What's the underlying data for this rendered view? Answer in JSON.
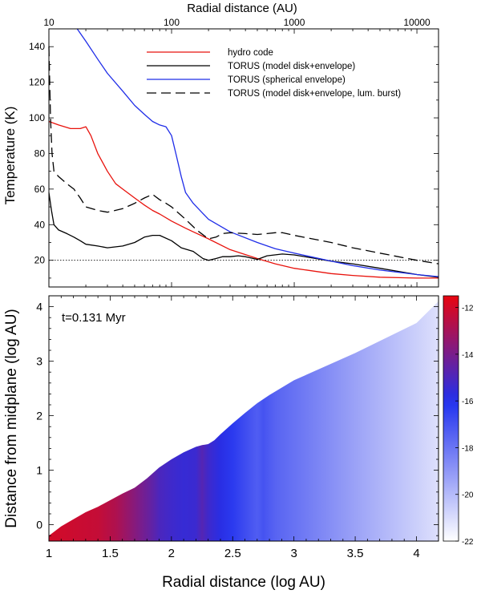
{
  "chart_data": [
    {
      "type": "line",
      "title": "",
      "xlabel": "Radial distance (AU)",
      "ylabel": "Temperature (K)",
      "xscale": "log",
      "xlim": [
        10,
        15000
      ],
      "ylim": [
        5,
        150
      ],
      "x_ticks": [
        10,
        100,
        1000,
        10000
      ],
      "x_tick_labels": [
        "10",
        "100",
        "1000",
        "10000"
      ],
      "y_ticks": [
        20,
        40,
        60,
        80,
        100,
        120,
        140
      ],
      "y_tick_labels": [
        "20",
        "40",
        "60",
        "80",
        "100",
        "120",
        "140"
      ],
      "legend_position": "top-right",
      "reference_line": {
        "y": 20,
        "style": "dotted"
      },
      "series": [
        {
          "name": "hydro code",
          "color": "#e8120c",
          "dash": "solid",
          "x": [
            10,
            12,
            15,
            18,
            20,
            22,
            25,
            30,
            35,
            40,
            50,
            60,
            70,
            80,
            100,
            130,
            150,
            200,
            300,
            500,
            700,
            1000,
            2000,
            3000,
            5000,
            10000,
            15000
          ],
          "y": [
            98,
            96,
            94,
            94,
            95,
            90,
            80,
            70,
            63,
            60,
            55,
            51,
            48,
            46,
            42,
            38,
            36,
            32,
            26,
            21,
            18,
            15.5,
            12.5,
            11.5,
            10.5,
            10,
            10
          ]
        },
        {
          "name": "TORUS (model disk+envelope)",
          "color": "#000000",
          "dash": "solid",
          "x": [
            10,
            10.5,
            11,
            12,
            14,
            16,
            18,
            20,
            25,
            30,
            40,
            50,
            60,
            70,
            80,
            100,
            120,
            150,
            180,
            200,
            230,
            260,
            300,
            350,
            400,
            500,
            600,
            800,
            1000,
            1500,
            2000,
            3000,
            5000,
            10000,
            15000
          ],
          "y": [
            58,
            48,
            40,
            37,
            35,
            33,
            31,
            29,
            28,
            27,
            28,
            30,
            33,
            34,
            34,
            31,
            27,
            25,
            21,
            20,
            21,
            22,
            22,
            22.5,
            22,
            20.5,
            22.5,
            23.5,
            23,
            21,
            19.5,
            18,
            15.5,
            12,
            10.5
          ]
        },
        {
          "name": "TORUS (spherical envelope)",
          "color": "#1f2de8",
          "dash": "solid",
          "x": [
            17,
            20,
            25,
            30,
            40,
            50,
            60,
            70,
            80,
            90,
            100,
            110,
            120,
            130,
            150,
            200,
            300,
            500,
            700,
            1000,
            2000,
            3000,
            5000,
            10000,
            15000
          ],
          "y": [
            150,
            143,
            133,
            125,
            115,
            107,
            102,
            98,
            96,
            95,
            90,
            78,
            67,
            58,
            52,
            43,
            36,
            30,
            26.5,
            24,
            19.5,
            17,
            14.5,
            12,
            10.8
          ]
        },
        {
          "name": "TORUS (model disk+envelope, lum. burst)",
          "color": "#000000",
          "dash": "long-dash",
          "x": [
            10,
            10.3,
            10.6,
            11,
            12,
            14,
            16,
            18,
            20,
            25,
            30,
            40,
            50,
            60,
            70,
            80,
            90,
            100,
            130,
            160,
            200,
            230,
            260,
            300,
            400,
            500,
            600,
            700,
            800,
            1000,
            2000,
            3000,
            5000,
            10000,
            15000
          ],
          "y": [
            140,
            100,
            80,
            70,
            67,
            63,
            60,
            55,
            50,
            48,
            47,
            49,
            52,
            55,
            57,
            54,
            52,
            50,
            43,
            37,
            32,
            33,
            35,
            35.5,
            35,
            34.5,
            35,
            35.5,
            35.5,
            34,
            30,
            27,
            24,
            20,
            18
          ]
        }
      ]
    },
    {
      "type": "heatmap",
      "annotation": "t=0.131 Myr",
      "xlabel": "Radial distance (log AU)",
      "ylabel": "Distance from midplane (log AU)",
      "xlim": [
        1,
        4.18
      ],
      "ylim": [
        -0.3,
        4.2
      ],
      "x_ticks": [
        1,
        1.5,
        2,
        2.5,
        3,
        3.5,
        4
      ],
      "x_tick_labels": [
        "1",
        "1.5",
        "2",
        "2.5",
        "3",
        "3.5",
        "4"
      ],
      "y_ticks": [
        0,
        1,
        2,
        3,
        4
      ],
      "y_tick_labels": [
        "0",
        "1",
        "2",
        "3",
        "4"
      ],
      "boundary": {
        "x": [
          1,
          1.1,
          1.2,
          1.3,
          1.4,
          1.5,
          1.6,
          1.7,
          1.8,
          1.9,
          2.0,
          2.1,
          2.2,
          2.25,
          2.3,
          2.35,
          2.4,
          2.5,
          2.6,
          2.7,
          2.8,
          3.0,
          3.5,
          4.0,
          4.18
        ],
        "y": [
          -0.2,
          -0.03,
          0.1,
          0.23,
          0.33,
          0.45,
          0.57,
          0.68,
          0.85,
          1.05,
          1.2,
          1.33,
          1.43,
          1.46,
          1.48,
          1.55,
          1.66,
          1.86,
          2.05,
          2.23,
          2.38,
          2.65,
          3.15,
          3.7,
          4.1
        ]
      },
      "color_profile": {
        "x": [
          1.0,
          1.4,
          1.55,
          1.65,
          1.75,
          1.85,
          1.9,
          2.0,
          2.1,
          2.2,
          2.25,
          2.3,
          2.4,
          2.5,
          2.6,
          2.7,
          2.75,
          2.85,
          3.0,
          3.5,
          4.0,
          4.18
        ],
        "value": [
          -12,
          -12.3,
          -12.8,
          -13.4,
          -14.0,
          -14.6,
          -15.0,
          -15.3,
          -15.5,
          -15.4,
          -14.8,
          -15.3,
          -15.8,
          -16.3,
          -16.8,
          -17.3,
          -17.0,
          -17.5,
          -17.9,
          -19.3,
          -20.6,
          -21.1
        ]
      },
      "colorbar": {
        "ticks": [
          -12,
          -14,
          -16,
          -18,
          -20,
          -22
        ],
        "tick_labels": [
          "-12",
          "-14",
          "-16",
          "-18",
          "-20",
          "-22"
        ],
        "range": [
          -22,
          -11.5
        ],
        "colors": [
          "#ffffff",
          "#2030ee",
          "#e8050f"
        ]
      }
    }
  ]
}
